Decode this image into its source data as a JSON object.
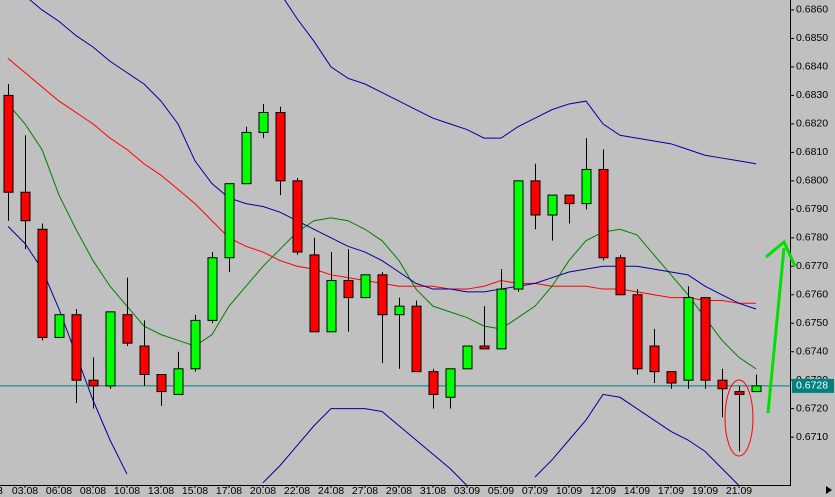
{
  "chart_data": {
    "type": "candlestick",
    "categories": [
      null,
      "03.08",
      null,
      "06.08",
      null,
      "08.08",
      null,
      "10.08",
      null,
      "13.08",
      null,
      "15.08",
      null,
      "17.08",
      null,
      "20.08",
      null,
      "22.08",
      null,
      "24.08",
      null,
      "27.08",
      null,
      "29.08",
      null,
      "31.08",
      null,
      "03.09",
      null,
      "05.09",
      null,
      "07.09",
      null,
      "10.09",
      null,
      "12.09",
      null,
      "14.09",
      null,
      "17.09",
      null,
      "19.09",
      null,
      "21.09",
      null
    ],
    "partial_x_label": "3",
    "open": [
      0.683,
      0.6796,
      0.6783,
      0.6745,
      0.6753,
      0.673,
      0.6728,
      0.6753,
      0.6742,
      0.6732,
      0.6725,
      0.6734,
      0.6751,
      0.6773,
      0.6799,
      0.6817,
      0.6824,
      0.68,
      0.6774,
      0.6747,
      0.6765,
      0.6759,
      0.6767,
      0.6753,
      0.6756,
      0.6733,
      0.6724,
      0.6734,
      0.6742,
      0.6741,
      0.6762,
      0.68,
      0.6788,
      0.6795,
      0.6792,
      0.6804,
      0.6773,
      0.676,
      0.6742,
      0.6733,
      0.673,
      0.6759,
      0.673,
      0.6726,
      0.6726
    ],
    "high": [
      0.6834,
      0.6816,
      0.6785,
      0.6753,
      0.6755,
      0.6738,
      0.6754,
      0.6766,
      0.6751,
      0.6732,
      0.674,
      0.6753,
      0.6775,
      0.6799,
      0.6819,
      0.6827,
      0.6826,
      0.6801,
      0.678,
      0.6775,
      0.6776,
      0.6767,
      0.6768,
      0.6759,
      0.6758,
      0.6734,
      0.6734,
      0.6742,
      0.6756,
      0.6769,
      0.68,
      0.6806,
      0.6795,
      0.6795,
      0.6815,
      0.6811,
      0.6774,
      0.6762,
      0.6748,
      0.6733,
      0.6763,
      0.6759,
      0.6734,
      0.6728,
      0.6732
    ],
    "low": [
      0.6786,
      0.6776,
      0.6744,
      0.6745,
      0.6722,
      0.672,
      0.6727,
      0.6742,
      0.6728,
      0.6721,
      0.6725,
      0.6733,
      0.675,
      0.6768,
      0.6799,
      0.6815,
      0.6795,
      0.6774,
      0.6747,
      0.6747,
      0.6747,
      0.6759,
      0.6736,
      0.6734,
      0.6733,
      0.672,
      0.672,
      0.6734,
      0.6741,
      0.6741,
      0.6761,
      0.6783,
      0.6779,
      0.6785,
      0.679,
      0.6772,
      0.676,
      0.6732,
      0.6729,
      0.6727,
      0.6727,
      0.6727,
      0.6717,
      0.6705,
      0.6726
    ],
    "close": [
      0.6796,
      0.6786,
      0.6745,
      0.6753,
      0.673,
      0.6728,
      0.6754,
      0.6743,
      0.6732,
      0.6726,
      0.6734,
      0.6751,
      0.6773,
      0.6799,
      0.6817,
      0.6824,
      0.68,
      0.6775,
      0.6747,
      0.6765,
      0.6759,
      0.6767,
      0.6753,
      0.6756,
      0.6733,
      0.6725,
      0.6734,
      0.6742,
      0.6741,
      0.6762,
      0.68,
      0.6788,
      0.6795,
      0.6792,
      0.6804,
      0.6773,
      0.676,
      0.6734,
      0.6733,
      0.6729,
      0.6759,
      0.673,
      0.6727,
      0.6725,
      0.6728
    ],
    "up_color": "#00ff00",
    "down_color": "#ff0000",
    "lines": [
      {
        "color": "#ff0000",
        "values": [
          0.6843,
          0.6838,
          0.6833,
          0.6828,
          0.6824,
          0.682,
          0.6815,
          0.6811,
          0.6806,
          0.6802,
          0.6797,
          0.6792,
          0.6786,
          0.678,
          0.6777,
          0.6775,
          0.6772,
          0.677,
          0.6769,
          0.6767,
          0.6766,
          0.6765,
          0.6764,
          0.6763,
          0.6763,
          0.6763,
          0.6762,
          0.6762,
          0.6763,
          0.6765,
          0.6764,
          0.6764,
          0.6763,
          0.6763,
          0.6763,
          0.6762,
          0.6762,
          0.6761,
          0.676,
          0.6759,
          0.6759,
          0.6758,
          0.6758,
          0.6757,
          0.6757
        ]
      },
      {
        "color": "#008000",
        "values": [
          0.6827,
          0.682,
          0.6811,
          0.6795,
          0.6783,
          0.6772,
          0.6763,
          0.6756,
          0.6749,
          0.6746,
          0.6744,
          0.6742,
          0.6746,
          0.6756,
          0.6763,
          0.677,
          0.6776,
          0.6782,
          0.6786,
          0.6787,
          0.6786,
          0.6783,
          0.6779,
          0.6772,
          0.6762,
          0.6756,
          0.6754,
          0.6752,
          0.6749,
          0.6748,
          0.6752,
          0.6756,
          0.6763,
          0.6772,
          0.6779,
          0.6782,
          0.6783,
          0.6781,
          0.6774,
          0.6767,
          0.676,
          0.6752,
          0.6744,
          0.6738,
          0.6734
        ]
      },
      {
        "color": "#0000a0",
        "values": [
          0.6869,
          0.6865,
          0.686,
          0.6856,
          0.6851,
          0.6847,
          0.6842,
          0.6838,
          0.6834,
          0.6828,
          0.682,
          0.6807,
          0.6799,
          0.6794,
          0.6792,
          0.6791,
          0.6789,
          0.6786,
          0.6783,
          0.678,
          0.6777,
          0.6775,
          0.6772,
          0.6768,
          0.6764,
          0.6762,
          0.6762,
          0.6761,
          0.6761,
          0.6762,
          0.6763,
          0.6764,
          0.6766,
          0.6768,
          0.6769,
          0.677,
          0.677,
          0.677,
          0.6769,
          0.6768,
          0.6767,
          0.6763,
          0.676,
          0.6757,
          0.6755
        ]
      },
      {
        "color": "#0000a0",
        "values": [
          null,
          null,
          null,
          null,
          null,
          null,
          null,
          null,
          null,
          null,
          null,
          null,
          null,
          null,
          null,
          null,
          0.6866,
          0.6857,
          0.6849,
          0.684,
          0.6836,
          0.6834,
          0.6831,
          0.6828,
          0.6825,
          0.6822,
          0.682,
          0.6818,
          0.6815,
          0.6815,
          0.6819,
          0.6822,
          0.6825,
          0.6827,
          0.6828,
          0.682,
          0.6816,
          0.6815,
          0.6814,
          0.6813,
          0.6811,
          0.6809,
          0.6808,
          0.6807,
          0.6806
        ]
      },
      {
        "color": "#0000a0",
        "values": [
          0.6784,
          0.6778,
          0.6769,
          0.6755,
          0.6739,
          0.6723,
          0.6709,
          0.6697,
          null,
          null,
          null,
          null,
          null,
          null,
          null,
          0.6694,
          0.67,
          0.6707,
          0.6714,
          0.672,
          0.672,
          0.672,
          0.6719,
          0.6714,
          0.6709,
          0.6704,
          0.6699,
          0.6693,
          null,
          null,
          null,
          0.6696,
          0.6702,
          0.6709,
          0.6716,
          0.6725,
          0.6724,
          0.672,
          0.6716,
          0.6712,
          0.6709,
          0.6705,
          0.6699,
          0.6693,
          null
        ]
      }
    ],
    "price_line": {
      "value": 0.6728,
      "label": "0.6728",
      "color": "#008080"
    },
    "ylim": [
      0.66932,
      0.68635
    ],
    "yticks": [
      {
        "value": 0.686,
        "label": "0.6860"
      },
      {
        "value": 0.685,
        "label": "0.6850"
      },
      {
        "value": 0.684,
        "label": "0.6840"
      },
      {
        "value": 0.683,
        "label": "0.6830"
      },
      {
        "value": 0.682,
        "label": "0.6820"
      },
      {
        "value": 0.681,
        "label": "0.6810"
      },
      {
        "value": 0.68,
        "label": "0.6800"
      },
      {
        "value": 0.679,
        "label": "0.6790"
      },
      {
        "value": 0.678,
        "label": "0.6780"
      },
      {
        "value": 0.677,
        "label": "0.6770"
      },
      {
        "value": 0.676,
        "label": "0.6760"
      },
      {
        "value": 0.675,
        "label": "0.6750"
      },
      {
        "value": 0.674,
        "label": "0.6740"
      },
      {
        "value": 0.673,
        "label": "0.6730"
      },
      {
        "value": 0.672,
        "label": "0.6720"
      },
      {
        "value": 0.671,
        "label": "0.6710"
      }
    ],
    "grid": false
  }
}
